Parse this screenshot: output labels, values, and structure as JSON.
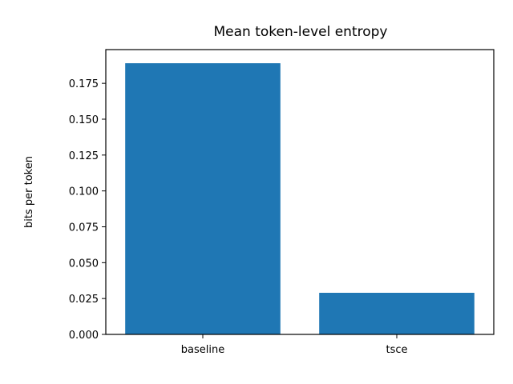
{
  "chart_data": {
    "type": "bar",
    "title": "Mean token-level entropy",
    "xlabel": "",
    "ylabel": "bits per token",
    "categories": [
      "baseline",
      "tsce"
    ],
    "values": [
      0.189,
      0.029
    ],
    "ylim": [
      0,
      0.1985
    ],
    "yticks": [
      0.0,
      0.025,
      0.05,
      0.075,
      0.1,
      0.125,
      0.15,
      0.175
    ],
    "ytick_labels": [
      "0.000",
      "0.025",
      "0.050",
      "0.075",
      "0.100",
      "0.125",
      "0.150",
      "0.175"
    ],
    "bar_color": "#1f77b4",
    "grid": false,
    "legend": "none"
  }
}
